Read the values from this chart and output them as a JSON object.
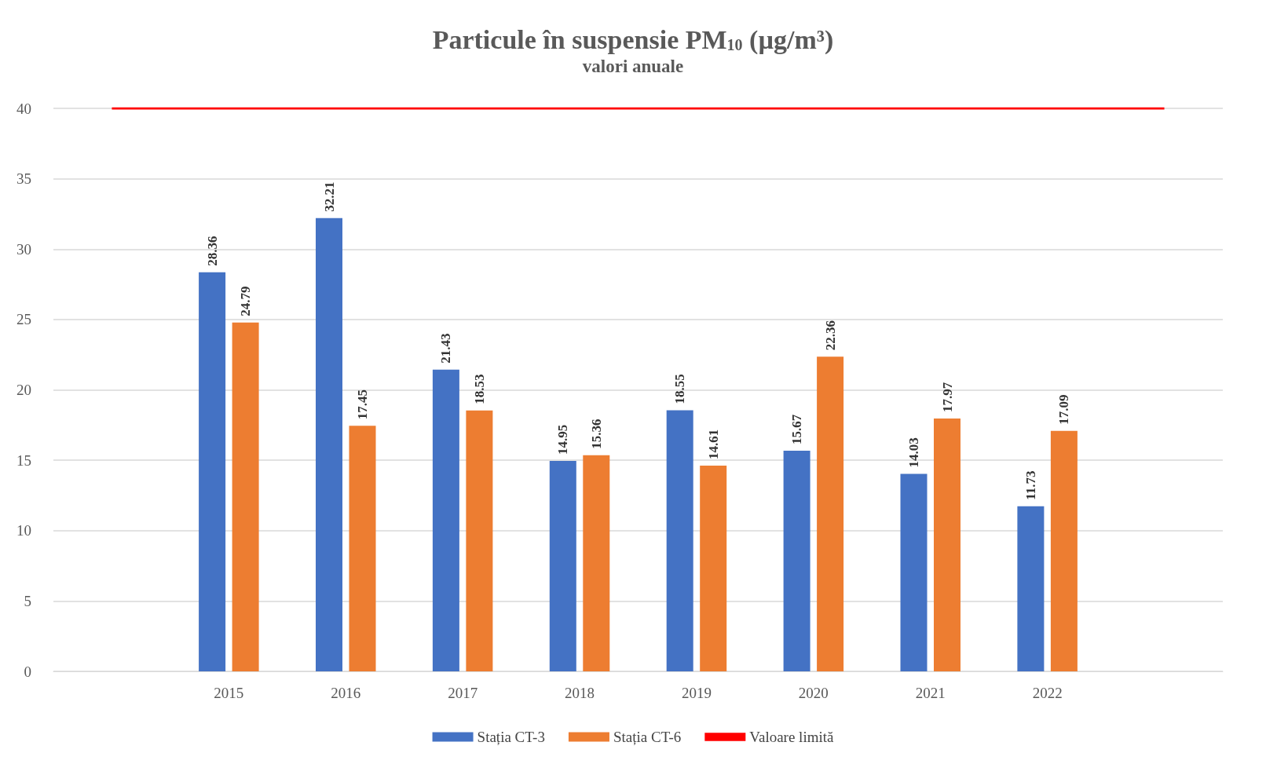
{
  "chart_data": {
    "type": "bar",
    "title": "Particule în suspensie PM$_{10}$ (µg/m³)",
    "subtitle": "valori anuale",
    "categories": [
      null,
      "2015",
      "2016",
      "2017",
      "2018",
      "2019",
      "2020",
      "2021",
      "2022",
      null
    ],
    "series": [
      {
        "name": "Stația CT-3",
        "color": "#4472c4",
        "values": [
          null,
          28.36,
          32.21,
          21.43,
          14.95,
          18.55,
          15.67,
          14.03,
          11.73,
          null
        ],
        "value_labels": [
          null,
          "28.36",
          "32.21",
          "21.43",
          "14.95",
          "18.55",
          "15.67",
          "14.03",
          "11.73",
          null
        ]
      },
      {
        "name": "Stația CT-6",
        "color": "#ed7d31",
        "values": [
          null,
          24.79,
          17.45,
          18.53,
          15.36,
          14.61,
          22.36,
          17.97,
          17.09,
          null
        ],
        "value_labels": [
          null,
          "24.79",
          "17.45",
          "18.53",
          "15.36",
          "14.61",
          "22.36",
          "17.97",
          "17.09",
          null
        ]
      },
      {
        "name": "Valoare limită",
        "type": "line",
        "color": "#ff0000",
        "marker": "none",
        "values": [
          40,
          40,
          40,
          40,
          40,
          40,
          40,
          40,
          40,
          40
        ]
      }
    ],
    "ylim": [
      0,
      40
    ],
    "yticks": [
      0,
      5,
      10,
      15,
      20,
      25,
      30,
      35,
      40
    ],
    "grid": "y",
    "legend": "bottom"
  }
}
